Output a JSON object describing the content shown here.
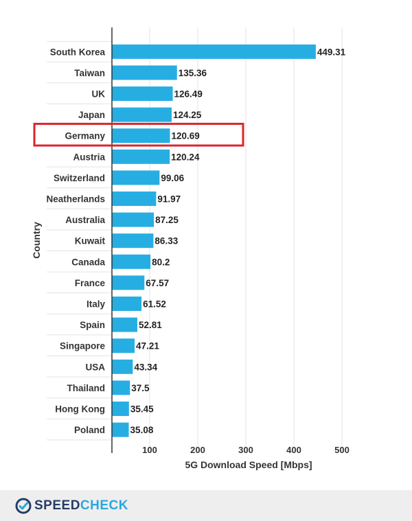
{
  "chart_data": {
    "type": "bar",
    "orientation": "horizontal",
    "xlabel": "5G Download Speed [Mbps]",
    "ylabel": "Country",
    "xlim": [
      0,
      500
    ],
    "xticks": [
      100,
      200,
      300,
      400,
      500
    ],
    "grid": true,
    "highlight": "Germany",
    "categories": [
      "South Korea",
      "Taiwan",
      "UK",
      "Japan",
      "Germany",
      "Austria",
      "Switzerland",
      "Neatherlands",
      "Australia",
      "Kuwait",
      "Canada",
      "France",
      "Italy",
      "Spain",
      "Singapore",
      "USA",
      "Thailand",
      "Hong Kong",
      "Poland"
    ],
    "values": [
      449.31,
      135.36,
      126.49,
      124.25,
      120.69,
      120.24,
      99.06,
      91.97,
      87.25,
      86.33,
      80.2,
      67.57,
      61.52,
      52.81,
      47.21,
      43.34,
      37.5,
      35.45,
      35.08
    ],
    "value_labels": [
      "449.31",
      "135.36",
      "126.49",
      "124.25",
      "120.69",
      "120.24",
      "99.06",
      "91.97",
      "87.25",
      "86.33",
      "80.2",
      "67.57",
      "61.52",
      "52.81",
      "47.21",
      "43.34",
      "37.5",
      "35.45",
      "35.08"
    ]
  },
  "colors": {
    "bar": "#26aee3",
    "highlight_box": "#d9262c",
    "grid": "#e3e3e3",
    "axis": "#333333",
    "footer_bg": "#eeeeee"
  },
  "brand": {
    "name_part1": "SPEED",
    "name_part2": "CHECK",
    "icon": "speedometer-check-icon"
  }
}
